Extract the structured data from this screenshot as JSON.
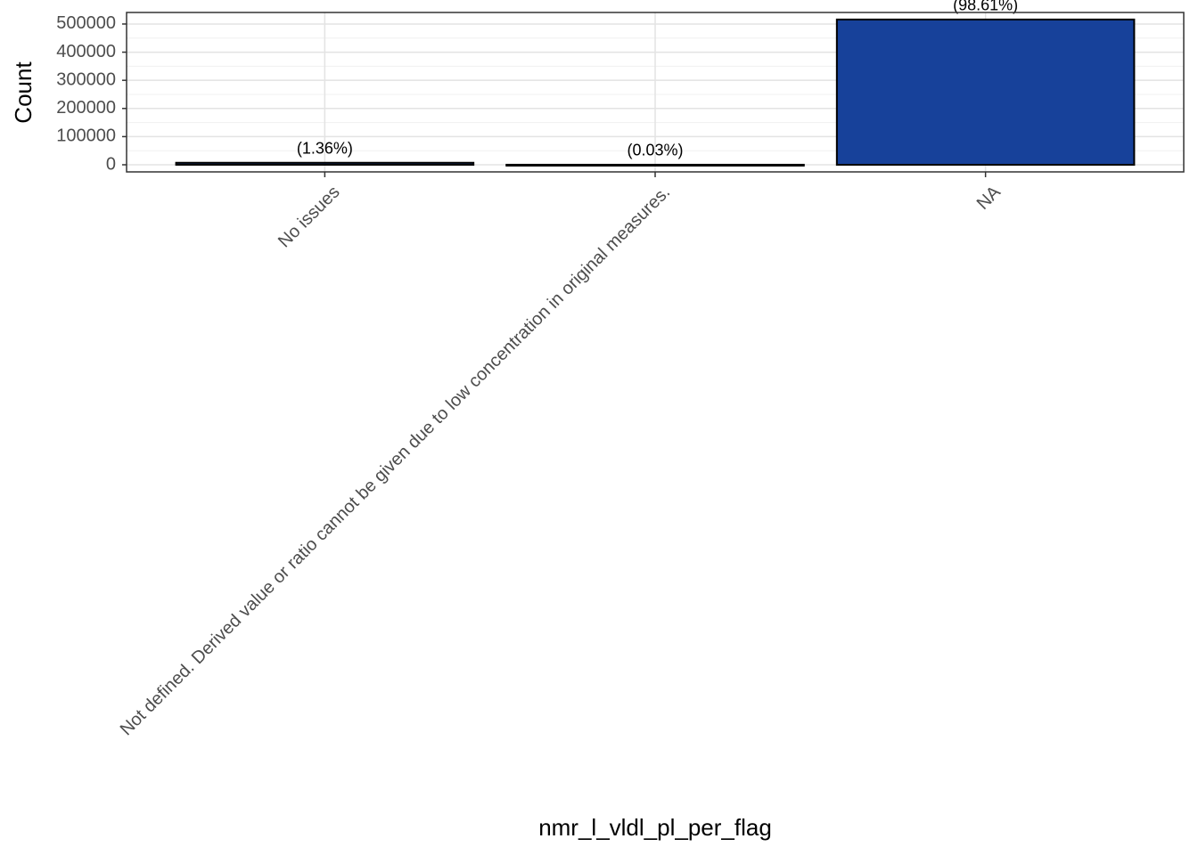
{
  "chart_data": {
    "type": "bar",
    "x_label": "nmr_l_vldl_pl_per_flag",
    "y_label": "Count",
    "categories": [
      "No issues",
      "Not defined. Derived value or ratio cannot be given due to low concentration in original measures.",
      "NA"
    ],
    "values": [
      7117,
      157,
      516000
    ],
    "annotations": [
      "(1.36%)",
      "(0.03%)",
      "(98.61%)"
    ],
    "color": "#17419a",
    "ylim": [
      -25300,
      541000
    ],
    "yticks": [
      0,
      100000,
      200000,
      300000,
      400000,
      500000
    ],
    "grid": true
  }
}
